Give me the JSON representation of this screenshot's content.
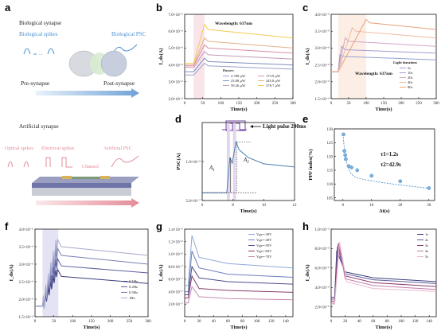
{
  "panels": {
    "a": {
      "letter": "a",
      "bio_title": "Biological synapse",
      "bio_spikes": "Biological spikes",
      "bio_psc": "Biological PSC",
      "pre": "Pre-synapse",
      "post": "Post-synapse",
      "art_title": "Artificial synapse",
      "optical": "Optical spikes",
      "electrical": "Electrical spikes",
      "artificial_psc": "Artificial PSC",
      "channel": "Channel",
      "dots": "..."
    },
    "b": {
      "letter": "b"
    },
    "c": {
      "letter": "c"
    },
    "d": {
      "letter": "d",
      "pulse_label": "Light pulse 200ms",
      "a1": "A",
      "a1sub": "1",
      "a2": "A",
      "a2sub": "2"
    },
    "e": {
      "letter": "e",
      "tau1": "τ1=1.2s",
      "tau2": "τ2=42.9s"
    },
    "f": {
      "letter": "f"
    },
    "g": {
      "letter": "g"
    },
    "h": {
      "letter": "h"
    }
  },
  "chart_data": [
    {
      "id": "b",
      "type": "line",
      "xlabel": "Time(s)",
      "ylabel": "I_ds(A)",
      "xlim": [
        0,
        300
      ],
      "ylim": [
        2e-06,
        7e-06
      ],
      "xticks": [
        0,
        50,
        100,
        150,
        200,
        250,
        300
      ],
      "yticks": [
        "2.0×10⁻⁶",
        "3.0×10⁻⁶",
        "4.0×10⁻⁶",
        "5.0×10⁻⁶",
        "6.0×10⁻⁶",
        "7.0×10⁻⁶"
      ],
      "annotation": "Wavelength: 637nm",
      "legend_title": "Power:",
      "shaded_region": [
        25,
        55
      ],
      "series": [
        {
          "name": "2.708 μW",
          "color": "#9aa1c8",
          "values": [
            [
              0,
              3.4e-06
            ],
            [
              25,
              3.4e-06
            ],
            [
              55,
              4.1e-06
            ],
            [
              65,
              3.95e-06
            ],
            [
              300,
              3.75e-06
            ]
          ]
        },
        {
          "name": "23.08 μW",
          "color": "#7e8fc0",
          "values": [
            [
              0,
              3.6e-06
            ],
            [
              25,
              3.6e-06
            ],
            [
              55,
              4.4e-06
            ],
            [
              65,
              4.2e-06
            ],
            [
              300,
              4e-06
            ]
          ]
        },
        {
          "name": "59.26 μW",
          "color": "#c49ab8",
          "values": [
            [
              0,
              3.85e-06
            ],
            [
              25,
              3.85e-06
            ],
            [
              55,
              4.8e-06
            ],
            [
              65,
              4.6e-06
            ],
            [
              300,
              4.35e-06
            ]
          ]
        },
        {
          "name": "173.9 μW",
          "color": "#d88fa5",
          "values": [
            [
              0,
              3.95e-06
            ],
            [
              25,
              3.95e-06
            ],
            [
              55,
              5.2e-06
            ],
            [
              65,
              5e-06
            ],
            [
              300,
              4.7e-06
            ]
          ]
        },
        {
          "name": "245.8 μW",
          "color": "#e3b08a",
          "values": [
            [
              0,
              4e-06
            ],
            [
              25,
              4e-06
            ],
            [
              55,
              5.6e-06
            ],
            [
              65,
              5.4e-06
            ],
            [
              300,
              5e-06
            ]
          ]
        },
        {
          "name": "378.7 μW",
          "color": "#f2cc55",
          "values": [
            [
              0,
              4.1e-06
            ],
            [
              25,
              4.1e-06
            ],
            [
              55,
              6.4e-06
            ],
            [
              65,
              6.1e-06
            ],
            [
              300,
              5.6e-06
            ]
          ]
        }
      ]
    },
    {
      "id": "c",
      "type": "line",
      "xlabel": "Time(s)",
      "ylabel": "I_ds(A)",
      "xlim": [
        0,
        300
      ],
      "ylim": [
        1.5e-06,
        4e-06
      ],
      "xticks": [
        0,
        50,
        100,
        150,
        200,
        250,
        300
      ],
      "yticks": [
        "1.5×10⁻⁶",
        "2.0×10⁻⁶",
        "2.5×10⁻⁶",
        "3.0×10⁻⁶",
        "3.5×10⁻⁶",
        "4.0×10⁻⁶"
      ],
      "annotation": "Wavelength: 637nm",
      "legend_title": "Light duration:",
      "series": [
        {
          "name": "5s",
          "color": "#8fa3d4",
          "values": [
            [
              0,
              2.3e-06
            ],
            [
              20,
              2.3e-06
            ],
            [
              25,
              2.8e-06
            ],
            [
              35,
              2.75e-06
            ],
            [
              300,
              2.65e-06
            ]
          ]
        },
        {
          "name": "10s",
          "color": "#a69ad0",
          "values": [
            [
              0,
              2.3e-06
            ],
            [
              20,
              2.3e-06
            ],
            [
              30,
              3.05e-06
            ],
            [
              40,
              2.95e-06
            ],
            [
              300,
              2.85e-06
            ]
          ]
        },
        {
          "name": "20s",
          "color": "#d0a5c8",
          "values": [
            [
              0,
              2.3e-06
            ],
            [
              20,
              2.3e-06
            ],
            [
              40,
              3.3e-06
            ],
            [
              50,
              3.2e-06
            ],
            [
              300,
              3.05e-06
            ]
          ]
        },
        {
          "name": "40s",
          "color": "#f0b9a0",
          "values": [
            [
              0,
              2.3e-06
            ],
            [
              20,
              2.3e-06
            ],
            [
              60,
              3.6e-06
            ],
            [
              70,
              3.5e-06
            ],
            [
              300,
              3.3e-06
            ]
          ]
        },
        {
          "name": "80s",
          "color": "#e8a07a",
          "values": [
            [
              0,
              2.3e-06
            ],
            [
              20,
              2.3e-06
            ],
            [
              100,
              3.85e-06
            ],
            [
              110,
              3.75e-06
            ],
            [
              300,
              3.55e-06
            ]
          ]
        }
      ]
    },
    {
      "id": "d",
      "type": "line",
      "xlabel": "Time(s)",
      "ylabel": "PSC(A)",
      "xlim": [
        6,
        12
      ],
      "ylim": [
        5e-07,
        1.5e-06
      ],
      "xticks": [
        6,
        8,
        10,
        12
      ],
      "yticks": [
        "5.0×10⁻⁷",
        "1.0×10⁻⁶"
      ],
      "series": [
        {
          "name": "PSC",
          "color": "#4a7fb5",
          "values": [
            [
              6,
              6e-07
            ],
            [
              7.6,
              6e-07
            ],
            [
              7.8,
              1.05e-06
            ],
            [
              7.95,
              9.8e-07
            ],
            [
              8.2,
              1.25e-06
            ],
            [
              8.4,
              1.15e-06
            ],
            [
              9,
              1.05e-06
            ],
            [
              10,
              9.7e-07
            ],
            [
              12,
              9.3e-07
            ]
          ]
        }
      ]
    },
    {
      "id": "e",
      "type": "scatter",
      "xlabel": "Δt(s)",
      "ylabel": "PPF index(%)",
      "xlim": [
        -3,
        32
      ],
      "ylim": [
        104,
        130
      ],
      "xticks": [
        0,
        10,
        20,
        30
      ],
      "yticks": [
        105,
        110,
        115,
        120,
        125,
        130
      ],
      "points": [
        [
          0.2,
          128
        ],
        [
          0.5,
          122
        ],
        [
          0.8,
          120.5
        ],
        [
          1,
          119
        ],
        [
          2,
          116.5
        ],
        [
          3,
          116
        ],
        [
          5,
          115
        ],
        [
          10,
          113
        ],
        [
          20,
          111
        ],
        [
          30,
          108.5
        ]
      ],
      "annotations": [
        "τ1=1.2s",
        "τ2=42.9s"
      ]
    },
    {
      "id": "f",
      "type": "line",
      "xlabel": "Time(s)",
      "ylabel": "I_ds(A)",
      "xlim": [
        0,
        300
      ],
      "ylim": [
        1.5e-06,
        4e-06
      ],
      "xticks": [
        0,
        50,
        100,
        150,
        200,
        250,
        300
      ],
      "yticks": [
        "1.5×10⁻⁶",
        "2.0×10⁻⁶",
        "2.5×10⁻⁶",
        "3.0×10⁻⁶",
        "3.5×10⁻⁶",
        "4.0×10⁻⁶"
      ],
      "series": [
        {
          "name": "0.1Hz",
          "color": "#3b3e7a",
          "values": [
            [
              0,
              1.8e-06
            ],
            [
              20,
              1.8e-06
            ],
            [
              60,
              2.85e-06
            ],
            [
              70,
              2.65e-06
            ],
            [
              300,
              2.45e-06
            ]
          ]
        },
        {
          "name": "0.2Hz",
          "color": "#5a5e9c",
          "values": [
            [
              0,
              1.8e-06
            ],
            [
              20,
              1.8e-06
            ],
            [
              60,
              3.15e-06
            ],
            [
              70,
              2.95e-06
            ],
            [
              300,
              2.75e-06
            ]
          ]
        },
        {
          "name": "0.5Hz",
          "color": "#7a7fb5",
          "values": [
            [
              0,
              1.8e-06
            ],
            [
              20,
              1.8e-06
            ],
            [
              60,
              3.45e-06
            ],
            [
              70,
              3.25e-06
            ],
            [
              300,
              3e-06
            ]
          ]
        },
        {
          "name": "1Hz",
          "color": "#a6aacc",
          "values": [
            [
              0,
              1.8e-06
            ],
            [
              20,
              1.8e-06
            ],
            [
              60,
              3.7e-06
            ],
            [
              70,
              3.5e-06
            ],
            [
              300,
              3.25e-06
            ]
          ]
        }
      ]
    },
    {
      "id": "g",
      "type": "line",
      "xlabel": "Time(s)",
      "ylabel": "I_ds(A)",
      "xlim": [
        0,
        150
      ],
      "ylim": [
        0,
        1.4e-06
      ],
      "xticks": [
        0,
        20,
        40,
        60,
        80,
        100,
        120,
        140
      ],
      "yticks": [
        "2.0×10⁻⁷",
        "4.0×10⁻⁷",
        "6.0×10⁻⁷",
        "8.0×10⁻⁷",
        "1.0×10⁻⁶",
        "1.2×10⁻⁶",
        "1.4×10⁻⁶"
      ],
      "series": [
        {
          "name": "Vgs=-30V",
          "color": "#8fa8d8",
          "values": [
            [
              0,
              5e-07
            ],
            [
              5,
              5e-07
            ],
            [
              10,
              1.3e-06
            ],
            [
              20,
              9.5e-07
            ],
            [
              60,
              8.5e-07
            ],
            [
              150,
              7.8e-07
            ]
          ]
        },
        {
          "name": "Vgs=-40V",
          "color": "#6c7fc0",
          "values": [
            [
              0,
              4e-07
            ],
            [
              5,
              4e-07
            ],
            [
              10,
              1.05e-06
            ],
            [
              20,
              7.8e-07
            ],
            [
              60,
              6.8e-07
            ],
            [
              150,
              6.3e-07
            ]
          ]
        },
        {
          "name": "Vgs=-50V",
          "color": "#4e4f8c",
          "values": [
            [
              0,
              3.5e-07
            ],
            [
              5,
              3.5e-07
            ],
            [
              10,
              8e-07
            ],
            [
              20,
              6.2e-07
            ],
            [
              60,
              5.6e-07
            ],
            [
              150,
              5.2e-07
            ]
          ]
        },
        {
          "name": "Vgs=-60V",
          "color": "#8a3a6e",
          "values": [
            [
              0,
              3e-07
            ],
            [
              5,
              3e-07
            ],
            [
              10,
              6.5e-07
            ],
            [
              20,
              4.5e-07
            ],
            [
              60,
              4.2e-07
            ],
            [
              150,
              3.9e-07
            ]
          ]
        },
        {
          "name": "Vgs=-70V",
          "color": "#c88ab0",
          "values": [
            [
              0,
              2.2e-07
            ],
            [
              5,
              2.2e-07
            ],
            [
              10,
              4.8e-07
            ],
            [
              20,
              3.2e-07
            ],
            [
              60,
              2.9e-07
            ],
            [
              150,
              2.7e-07
            ]
          ]
        }
      ]
    },
    {
      "id": "h",
      "type": "line",
      "xlabel": "Time(s)",
      "ylabel": "I_ds(A)",
      "xlim": [
        0,
        150
      ],
      "ylim": [
        1e-06,
        1e-05
      ],
      "xticks": [
        0,
        20,
        40,
        60,
        80,
        100,
        120,
        140
      ],
      "yticks": [
        "2.0×10⁻⁶",
        "4.0×10⁻⁶",
        "6.0×10⁻⁶",
        "8.0×10⁻⁶",
        "1.0×10⁻⁵"
      ],
      "series": [
        {
          "name": "1s",
          "color": "#3b3e7a",
          "values": [
            [
              0,
              3e-06
            ],
            [
              5,
              3e-06
            ],
            [
              8,
              7.8e-06
            ],
            [
              20,
              5.6e-06
            ],
            [
              60,
              5e-06
            ],
            [
              150,
              4.6e-06
            ]
          ]
        },
        {
          "name": "2s",
          "color": "#5a5e9c",
          "values": [
            [
              0,
              2.8e-06
            ],
            [
              5,
              2.8e-06
            ],
            [
              9,
              8.2e-06
            ],
            [
              20,
              5.4e-06
            ],
            [
              60,
              4.8e-06
            ],
            [
              150,
              4.4e-06
            ]
          ]
        },
        {
          "name": "3s",
          "color": "#8a3a6e",
          "values": [
            [
              0,
              2.6e-06
            ],
            [
              5,
              2.6e-06
            ],
            [
              10,
              8.5e-06
            ],
            [
              20,
              5.2e-06
            ],
            [
              60,
              4.5e-06
            ],
            [
              150,
              4.1e-06
            ]
          ]
        },
        {
          "name": "4s",
          "color": "#c07aa8",
          "values": [
            [
              0,
              2.4e-06
            ],
            [
              5,
              2.4e-06
            ],
            [
              11,
              8.6e-06
            ],
            [
              20,
              4.9e-06
            ],
            [
              60,
              4.2e-06
            ],
            [
              150,
              3.8e-06
            ]
          ]
        },
        {
          "name": "5s",
          "color": "#e8b8d2",
          "values": [
            [
              0,
              2.3e-06
            ],
            [
              5,
              2.3e-06
            ],
            [
              12,
              8.7e-06
            ],
            [
              22,
              4.6e-06
            ],
            [
              60,
              3.9e-06
            ],
            [
              150,
              3.6e-06
            ]
          ]
        }
      ]
    }
  ]
}
